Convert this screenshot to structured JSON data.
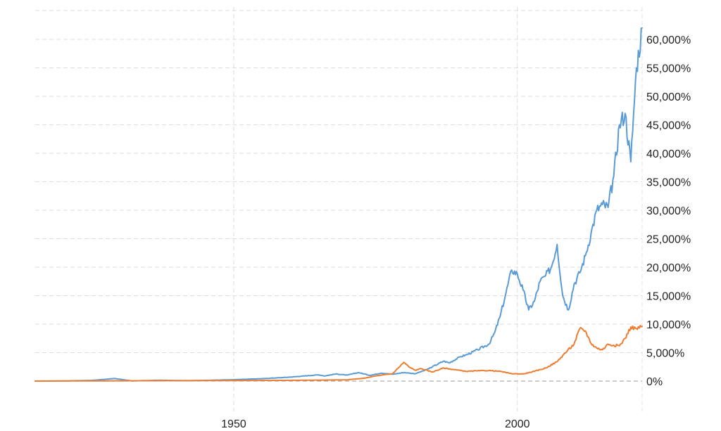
{
  "chart_data": {
    "type": "line",
    "title": "",
    "xlabel": "",
    "ylabel": "",
    "xlim": [
      1915,
      2022
    ],
    "ylim": [
      0,
      60000
    ],
    "grid": true,
    "y_ticks": [
      {
        "value": 0,
        "label": "0%"
      },
      {
        "value": 5000,
        "label": "5,000%"
      },
      {
        "value": 10000,
        "label": "10,000%"
      },
      {
        "value": 15000,
        "label": "15,000%"
      },
      {
        "value": 20000,
        "label": "20,000%"
      },
      {
        "value": 25000,
        "label": "25,000%"
      },
      {
        "value": 30000,
        "label": "30,000%"
      },
      {
        "value": 35000,
        "label": "35,000%"
      },
      {
        "value": 40000,
        "label": "40,000%"
      },
      {
        "value": 45000,
        "label": "45,000%"
      },
      {
        "value": 50000,
        "label": "50,000%"
      },
      {
        "value": 55000,
        "label": "55,000%"
      },
      {
        "value": 60000,
        "label": "60,000%"
      }
    ],
    "x_ticks": [
      {
        "value": 1950,
        "label": "1950"
      },
      {
        "value": 2000,
        "label": "2000"
      }
    ],
    "series": [
      {
        "color": "#5b9bd5",
        "points": [
          [
            1915,
            0
          ],
          [
            1920,
            30
          ],
          [
            1925,
            120
          ],
          [
            1929,
            450
          ],
          [
            1932,
            40
          ],
          [
            1937,
            150
          ],
          [
            1942,
            60
          ],
          [
            1946,
            150
          ],
          [
            1950,
            250
          ],
          [
            1955,
            420
          ],
          [
            1960,
            700
          ],
          [
            1965,
            1100
          ],
          [
            1966,
            900
          ],
          [
            1968,
            1250
          ],
          [
            1970,
            1050
          ],
          [
            1972,
            1500
          ],
          [
            1974,
            1000
          ],
          [
            1976,
            1400
          ],
          [
            1978,
            1200
          ],
          [
            1980,
            1500
          ],
          [
            1982,
            1300
          ],
          [
            1984,
            2000
          ],
          [
            1985,
            2500
          ],
          [
            1987,
            3500
          ],
          [
            1988,
            3200
          ],
          [
            1990,
            4300
          ],
          [
            1991,
            4600
          ],
          [
            1993,
            5500
          ],
          [
            1995,
            6500
          ],
          [
            1996,
            8500
          ],
          [
            1997,
            11500
          ],
          [
            1998,
            15500
          ],
          [
            1999,
            19500
          ],
          [
            2000,
            18800
          ],
          [
            2001,
            16000
          ],
          [
            2002,
            12500
          ],
          [
            2003,
            14000
          ],
          [
            2004,
            17500
          ],
          [
            2005,
            18500
          ],
          [
            2006,
            20000
          ],
          [
            2007,
            24000
          ],
          [
            2008,
            15000
          ],
          [
            2009,
            12500
          ],
          [
            2010,
            17000
          ],
          [
            2011,
            19000
          ],
          [
            2012,
            22000
          ],
          [
            2013,
            26000
          ],
          [
            2014,
            30000
          ],
          [
            2015,
            31000
          ],
          [
            2016,
            30500
          ],
          [
            2017,
            36000
          ],
          [
            2018,
            45000
          ],
          [
            2019,
            47000
          ],
          [
            2020,
            38500
          ],
          [
            2020.5,
            47000
          ],
          [
            2021,
            55000
          ],
          [
            2022,
            62000
          ]
        ]
      },
      {
        "color": "#ed7d31",
        "points": [
          [
            1915,
            0
          ],
          [
            1930,
            50
          ],
          [
            1950,
            100
          ],
          [
            1960,
            130
          ],
          [
            1970,
            220
          ],
          [
            1973,
            500
          ],
          [
            1975,
            900
          ],
          [
            1978,
            1300
          ],
          [
            1979,
            2300
          ],
          [
            1980,
            3300
          ],
          [
            1981,
            2400
          ],
          [
            1982,
            1900
          ],
          [
            1983,
            2200
          ],
          [
            1985,
            1600
          ],
          [
            1987,
            2300
          ],
          [
            1989,
            2000
          ],
          [
            1991,
            1700
          ],
          [
            1993,
            1800
          ],
          [
            1995,
            1850
          ],
          [
            1997,
            1700
          ],
          [
            1999,
            1300
          ],
          [
            2001,
            1250
          ],
          [
            2003,
            1700
          ],
          [
            2005,
            2300
          ],
          [
            2007,
            3400
          ],
          [
            2008,
            4500
          ],
          [
            2010,
            6500
          ],
          [
            2011,
            9200
          ],
          [
            2012,
            8800
          ],
          [
            2013,
            6600
          ],
          [
            2014,
            5800
          ],
          [
            2015,
            5500
          ],
          [
            2016,
            6500
          ],
          [
            2017,
            6300
          ],
          [
            2018,
            6200
          ],
          [
            2019,
            7500
          ],
          [
            2020,
            9500
          ],
          [
            2021,
            9200
          ],
          [
            2022,
            9600
          ]
        ]
      }
    ]
  }
}
